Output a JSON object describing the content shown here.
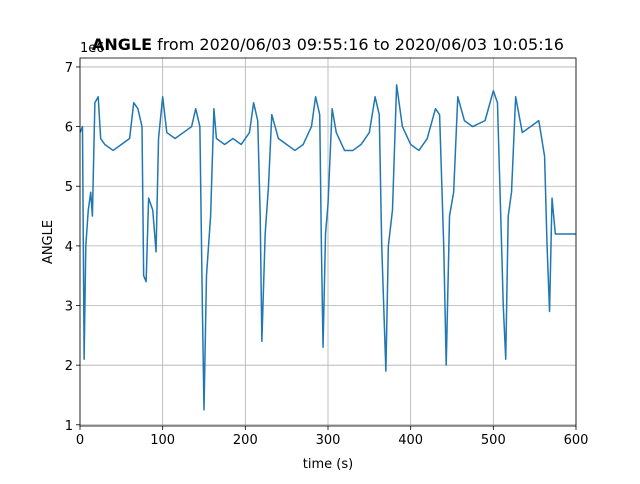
{
  "chart_data": {
    "type": "line",
    "title": [
      "ANGLE",
      "from 2020/06/03 09:55:16 to 2020/06/03 10:05:16"
    ],
    "xlabel": "time (s)",
    "ylabel": "ANGLE",
    "y_offset_text": "1e6",
    "xlim": [
      0,
      600
    ],
    "ylim": [
      0.98,
      7.15
    ],
    "xticks": [
      0,
      100,
      200,
      300,
      400,
      500,
      600
    ],
    "yticks": [
      1,
      2,
      3,
      4,
      5,
      6,
      7
    ],
    "grid": true,
    "series": [
      {
        "color": "#1f77b4",
        "x": [
          0,
          3,
          5,
          7,
          10,
          13,
          15,
          18,
          22,
          25,
          30,
          40,
          50,
          60,
          65,
          70,
          75,
          77,
          80,
          83,
          88,
          92,
          95,
          100,
          105,
          115,
          125,
          135,
          140,
          145,
          148,
          150,
          153,
          158,
          162,
          165,
          175,
          185,
          195,
          205,
          210,
          215,
          218,
          220,
          224,
          228,
          232,
          240,
          250,
          260,
          270,
          280,
          285,
          290,
          292,
          294,
          297,
          300,
          305,
          310,
          320,
          330,
          340,
          350,
          357,
          362,
          365,
          370,
          373,
          378,
          383,
          390,
          400,
          410,
          420,
          430,
          435,
          440,
          443,
          447,
          452,
          457,
          465,
          475,
          490,
          500,
          505,
          510,
          512,
          515,
          518,
          522,
          527,
          535,
          545,
          555,
          562,
          565,
          568,
          571,
          575,
          600
        ],
        "values": [
          5.9,
          6.0,
          2.1,
          4.0,
          4.6,
          4.9,
          4.5,
          6.4,
          6.5,
          5.8,
          5.7,
          5.6,
          5.7,
          5.8,
          6.4,
          6.3,
          6.0,
          3.5,
          3.4,
          4.8,
          4.6,
          3.9,
          5.8,
          6.5,
          5.9,
          5.8,
          5.9,
          6.0,
          6.3,
          6.0,
          3.0,
          1.25,
          3.5,
          4.5,
          6.3,
          5.8,
          5.7,
          5.8,
          5.7,
          5.9,
          6.4,
          6.1,
          4.5,
          2.4,
          4.2,
          5.0,
          6.2,
          5.8,
          5.7,
          5.6,
          5.7,
          6.0,
          6.5,
          6.2,
          4.0,
          2.3,
          4.2,
          4.7,
          6.3,
          5.9,
          5.6,
          5.6,
          5.7,
          5.9,
          6.5,
          6.2,
          4.0,
          1.9,
          4.0,
          4.6,
          6.7,
          6.0,
          5.7,
          5.6,
          5.8,
          6.3,
          6.2,
          4.0,
          2.0,
          4.5,
          4.9,
          6.5,
          6.1,
          6.0,
          6.1,
          6.6,
          6.4,
          4.0,
          3.0,
          2.1,
          4.5,
          4.9,
          6.5,
          5.9,
          6.0,
          6.1,
          5.5,
          4.0,
          2.9,
          4.8,
          4.2,
          4.2
        ]
      }
    ]
  }
}
